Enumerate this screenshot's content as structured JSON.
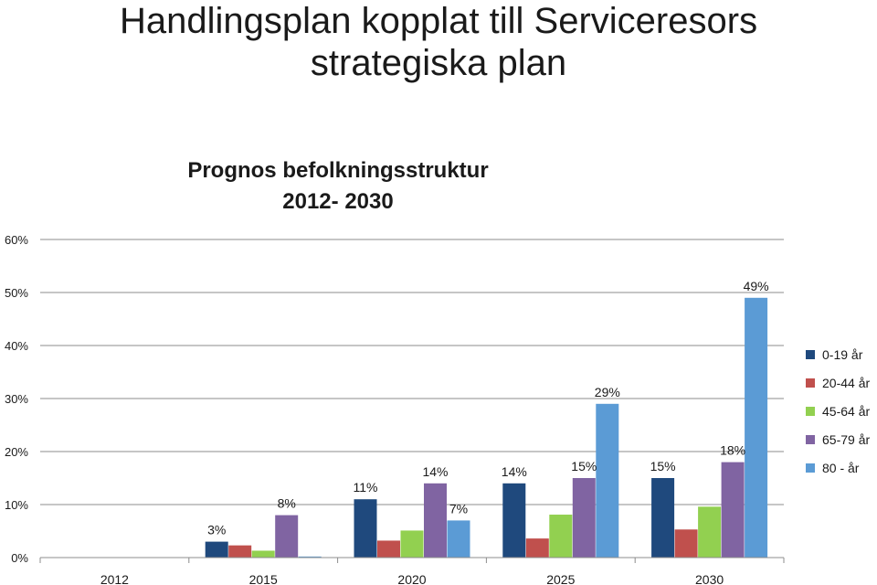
{
  "slide": {
    "title_line1": "Handlingsplan  kopplat till Serviceresors",
    "title_line2": "strategiska plan"
  },
  "chart_data": {
    "type": "bar",
    "title_line1": "Prognos befolkningsstruktur",
    "title_line2": "2012- 2030",
    "categories": [
      "2012",
      "2015",
      "2020",
      "2025",
      "2030"
    ],
    "ylim": [
      0,
      60
    ],
    "yticks": [
      "0%",
      "10%",
      "20%",
      "30%",
      "40%",
      "50%",
      "60%"
    ],
    "ytick_values": [
      0,
      10,
      20,
      30,
      40,
      50,
      60
    ],
    "grid": true,
    "legend_position": "right",
    "series": [
      {
        "name": "0-19 år",
        "color": "#1F497D",
        "values": [
          0,
          3,
          11,
          14,
          15
        ]
      },
      {
        "name": "20-44 år",
        "color": "#C0504D",
        "values": [
          0,
          2.3,
          3.2,
          3.6,
          5.3
        ]
      },
      {
        "name": "45-64 år",
        "color": "#92D050",
        "values": [
          0,
          1.3,
          5.1,
          8.1,
          9.6
        ]
      },
      {
        "name": "65-79 år",
        "color": "#8064A2",
        "values": [
          0,
          8,
          14,
          15,
          18
        ]
      },
      {
        "name": "80 - år",
        "color": "#5B9BD5",
        "values": [
          0,
          0.2,
          7,
          29,
          49
        ]
      }
    ],
    "data_labels": [
      {
        "category": "2015",
        "series": "0-19 år",
        "text": "3%"
      },
      {
        "category": "2015",
        "series": "65-79 år",
        "text": "8%"
      },
      {
        "category": "2020",
        "series": "0-19 år",
        "text": "11%"
      },
      {
        "category": "2020",
        "series": "65-79 år",
        "text": "14%"
      },
      {
        "category": "2020",
        "series": "80 - år",
        "text": "7%"
      },
      {
        "category": "2025",
        "series": "0-19 år",
        "text": "14%"
      },
      {
        "category": "2025",
        "series": "65-79 år",
        "text": "15%"
      },
      {
        "category": "2025",
        "series": "80 - år",
        "text": "29%"
      },
      {
        "category": "2030",
        "series": "0-19 år",
        "text": "15%"
      },
      {
        "category": "2030",
        "series": "65-79 år",
        "text": "18%"
      },
      {
        "category": "2030",
        "series": "80 - år",
        "text": "49%"
      }
    ]
  }
}
